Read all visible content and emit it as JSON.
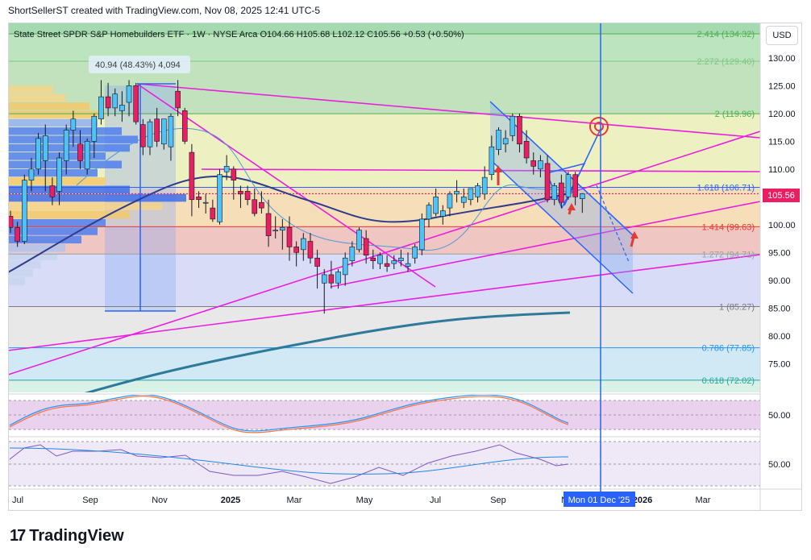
{
  "header": {
    "title": "ShortSellerST created with TradingView.com, Nov 08, 2025 12:41 UTC-5"
  },
  "symbol_line": "State Street SPDR S&P Homebuilders ETF · 1W · NYSE Arca  O104.66 H105.68 L102.12 C105.56 +0.53 (+0.50%)",
  "currency": "USD",
  "measure_label": "40.94 (48.43%) 4,094",
  "last_price_label": "105.56",
  "cursor_date_label": "Mon 01 Dec '25",
  "logo_text": "TradingView",
  "colors": {
    "up": "#26a69a",
    "down": "#e91e63",
    "up_fill": "#4fc3f7",
    "accent": "#2962ff",
    "magenta": "#e91ee0"
  },
  "chart_data": {
    "type": "candlestick",
    "title": "State Street SPDR S&P Homebuilders ETF · 1W · NYSE Arca",
    "ylim": [
      68,
      137
    ],
    "y_ticks": [
      75,
      80,
      85,
      90,
      95,
      100,
      105,
      110,
      115,
      120,
      125,
      130
    ],
    "x_ticks": [
      "Jul",
      "Sep",
      "Nov",
      "2025",
      "Mar",
      "May",
      "Jul",
      "Sep",
      "N",
      "2026",
      "Mar"
    ],
    "fib_levels": [
      {
        "label": "2.414 (134.32)",
        "value": 134.32,
        "color": "#4caf50"
      },
      {
        "label": "2.272 (129.40)",
        "value": 129.4,
        "color": "#81c784"
      },
      {
        "label": "2 (119.96)",
        "value": 119.96,
        "color": "#4caf50"
      },
      {
        "label": "1.618 (106.71)",
        "value": 106.71,
        "color": "#2962ff"
      },
      {
        "label": "1.414 (99.63)",
        "value": 99.63,
        "color": "#e53935"
      },
      {
        "label": "1.272 (94.71)",
        "value": 94.71,
        "color": "#9e9e9e"
      },
      {
        "label": "1 (85.27)",
        "value": 85.27,
        "color": "#787b86"
      },
      {
        "label": "0.786 (77.85)",
        "value": 77.85,
        "color": "#2196f3"
      },
      {
        "label": "0.618 (72.02)",
        "value": 72.02,
        "color": "#26a69a"
      }
    ],
    "candles": [
      [
        101.5,
        102.5,
        98.5,
        99.5
      ],
      [
        99.5,
        100.5,
        96.0,
        97.0
      ],
      [
        97.0,
        109.0,
        96.5,
        108.0
      ],
      [
        108.0,
        112.0,
        106.0,
        110.0
      ],
      [
        110.0,
        116.5,
        109.0,
        115.5
      ],
      [
        111.5,
        118.0,
        106.0,
        116.0
      ],
      [
        107.0,
        108.5,
        103.5,
        105.0
      ],
      [
        106.0,
        113.0,
        103.5,
        112.0
      ],
      [
        111.5,
        118.0,
        109.0,
        117.0
      ],
      [
        117.0,
        120.5,
        114.0,
        119.0
      ],
      [
        114.5,
        117.0,
        110.0,
        111.5
      ],
      [
        110.0,
        115.5,
        109.0,
        115.0
      ],
      [
        115.0,
        120.0,
        112.0,
        119.5
      ],
      [
        119.0,
        126.0,
        118.0,
        123.0
      ],
      [
        123.0,
        125.5,
        119.5,
        121.0
      ],
      [
        121.0,
        124.5,
        119.5,
        123.5
      ],
      [
        120.5,
        124.0,
        118.5,
        121.5
      ],
      [
        122.0,
        126.0,
        119.5,
        125.0
      ],
      [
        125.0,
        125.5,
        118.0,
        118.5
      ],
      [
        118.0,
        119.0,
        112.5,
        114.0
      ],
      [
        114.0,
        119.0,
        112.5,
        118.5
      ],
      [
        119.0,
        121.0,
        114.0,
        115.0
      ],
      [
        114.5,
        119.0,
        113.5,
        119.0
      ],
      [
        114.0,
        120.0,
        111.5,
        119.5
      ],
      [
        124.0,
        126.0,
        119.5,
        121.0
      ],
      [
        120.5,
        121.0,
        114.5,
        115.0
      ],
      [
        113.0,
        114.5,
        101.5,
        104.5
      ],
      [
        105.0,
        106.0,
        103.0,
        104.5
      ],
      [
        104.0,
        105.5,
        102.0,
        104.0
      ],
      [
        103.0,
        104.5,
        100.5,
        101.0
      ],
      [
        100.5,
        110.0,
        100.0,
        109.0
      ],
      [
        109.5,
        112.5,
        108.0,
        110.5
      ],
      [
        110.0,
        110.5,
        104.5,
        108.0
      ],
      [
        106.0,
        107.0,
        103.0,
        105.5
      ],
      [
        106.0,
        107.0,
        103.5,
        104.5
      ],
      [
        104.5,
        106.5,
        101.5,
        102.0
      ],
      [
        104.0,
        106.0,
        102.0,
        103.0
      ],
      [
        102.0,
        104.5,
        96.0,
        98.0
      ],
      [
        99.0,
        101.5,
        97.5,
        99.0
      ],
      [
        99.0,
        101.0,
        95.5,
        99.5
      ],
      [
        99.5,
        101.5,
        93.5,
        96.0
      ],
      [
        96.0,
        97.0,
        92.5,
        95.0
      ],
      [
        95.5,
        98.5,
        93.5,
        97.5
      ],
      [
        97.0,
        98.5,
        93.0,
        94.0
      ],
      [
        94.0,
        95.5,
        88.5,
        92.5
      ],
      [
        89.5,
        92.0,
        84.0,
        91.0
      ],
      [
        91.0,
        93.5,
        88.5,
        89.5
      ],
      [
        89.5,
        92.0,
        88.5,
        91.5
      ],
      [
        91.0,
        95.0,
        89.0,
        94.0
      ],
      [
        93.5,
        97.0,
        92.5,
        96.0
      ],
      [
        95.5,
        99.5,
        95.0,
        99.0
      ],
      [
        97.5,
        99.0,
        93.0,
        94.5
      ],
      [
        94.0,
        95.5,
        92.0,
        93.5
      ],
      [
        93.0,
        95.0,
        92.0,
        94.5
      ],
      [
        93.0,
        94.5,
        91.5,
        92.5
      ],
      [
        93.0,
        94.5,
        92.0,
        93.5
      ],
      [
        93.5,
        95.5,
        92.5,
        94.0
      ],
      [
        92.5,
        95.0,
        91.5,
        93.0
      ],
      [
        94.0,
        96.5,
        93.0,
        96.0
      ],
      [
        95.5,
        102.0,
        94.5,
        101.0
      ],
      [
        101.0,
        104.0,
        99.5,
        103.5
      ],
      [
        102.0,
        106.5,
        101.5,
        105.0
      ],
      [
        101.5,
        103.5,
        100.0,
        102.5
      ],
      [
        103.0,
        106.0,
        101.5,
        105.5
      ],
      [
        105.5,
        108.0,
        104.0,
        106.0
      ],
      [
        104.0,
        106.5,
        103.0,
        105.0
      ],
      [
        104.5,
        106.5,
        103.5,
        106.5
      ],
      [
        105.0,
        107.5,
        104.0,
        107.0
      ],
      [
        105.5,
        110.5,
        104.5,
        108.5
      ],
      [
        109.0,
        116.0,
        108.0,
        114.0
      ],
      [
        113.5,
        117.5,
        112.5,
        117.0
      ],
      [
        114.5,
        117.0,
        113.0,
        115.5
      ],
      [
        116.0,
        120.0,
        115.0,
        119.5
      ],
      [
        119.5,
        120.0,
        113.0,
        114.5
      ],
      [
        115.0,
        117.0,
        111.0,
        112.0
      ],
      [
        111.5,
        113.0,
        109.0,
        110.5
      ],
      [
        110.0,
        112.5,
        108.5,
        111.5
      ],
      [
        111.0,
        112.5,
        104.0,
        104.5
      ],
      [
        104.5,
        107.5,
        103.5,
        107.0
      ],
      [
        107.5,
        109.0,
        103.0,
        104.0
      ],
      [
        105.0,
        109.5,
        104.5,
        109.0
      ],
      [
        109.0,
        109.5,
        103.5,
        105.0
      ],
      [
        104.66,
        105.68,
        102.12,
        105.56
      ]
    ],
    "indicator_pane_1": {
      "ticks": [
        50
      ],
      "ylim": [
        20,
        85
      ]
    },
    "indicator_pane_2": {
      "ticks": [
        50
      ],
      "ylim": [
        10,
        90
      ]
    }
  }
}
